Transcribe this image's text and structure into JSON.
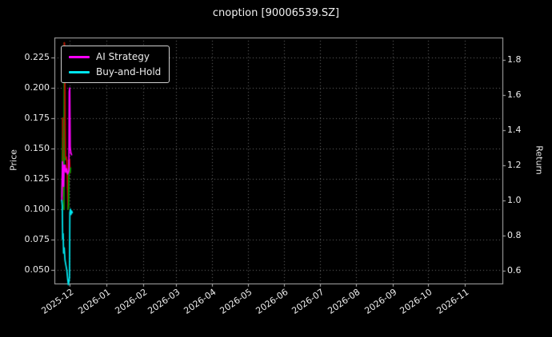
{
  "chart_data": {
    "type": "line",
    "title": "cnoption [90006539.SZ]",
    "grid": true,
    "background": "#000000",
    "left_axis": {
      "label": "Price",
      "ticks": [
        "0.050",
        "0.075",
        "0.100",
        "0.125",
        "0.150",
        "0.175",
        "0.200",
        "0.225"
      ],
      "tick_values": [
        0.05,
        0.075,
        0.1,
        0.125,
        0.15,
        0.175,
        0.2,
        0.225
      ],
      "range": [
        0.0388,
        0.2414
      ]
    },
    "right_axis": {
      "label": "Return",
      "ticks": [
        "0.6",
        "0.8",
        "1.0",
        "1.2",
        "1.4",
        "1.6",
        "1.8"
      ],
      "tick_values": [
        0.6,
        0.8,
        1.0,
        1.2,
        1.4,
        1.6,
        1.8
      ],
      "range": [
        0.527,
        1.927
      ]
    },
    "x_axis": {
      "tick_labels": [
        "2025-12",
        "2026-01",
        "2026-02",
        "2026-03",
        "2026-04",
        "2026-05",
        "2026-06",
        "2026-07",
        "2026-08",
        "2026-09",
        "2026-10",
        "2026-11"
      ],
      "tick_days": [
        13,
        44,
        75,
        103,
        134,
        164,
        195,
        225,
        256,
        287,
        317,
        348
      ],
      "range_days": [
        0,
        380
      ]
    },
    "legend": [
      {
        "label": "AI Strategy",
        "color": "#ff00ff"
      },
      {
        "label": "Buy-and-Hold",
        "color": "#00e5ee"
      }
    ],
    "series": [
      {
        "name": "Price",
        "axis": "left",
        "style": "updown",
        "up_color": "#00a000",
        "down_color": "#cc0000",
        "points": [
          [
            6.3,
            0.11
          ],
          [
            6.6,
            0.126
          ],
          [
            6.9,
            0.158
          ],
          [
            7.1,
            0.175
          ],
          [
            7.4,
            0.15
          ],
          [
            7.7,
            0.118
          ],
          [
            8.0,
            0.1
          ],
          [
            8.4,
            0.237
          ],
          [
            8.8,
            0.23
          ],
          [
            9.1,
            0.17
          ],
          [
            9.4,
            0.141
          ],
          [
            10.0,
            0.143
          ],
          [
            10.6,
            0.14
          ],
          [
            11.2,
            0.118
          ],
          [
            11.6,
            0.1
          ],
          [
            12.0,
            0.103
          ],
          [
            12.4,
            0.14
          ],
          [
            12.9,
            0.141
          ],
          [
            13.3,
            0.13
          ],
          [
            13.7,
            0.134
          ]
        ]
      },
      {
        "name": "AI Strategy",
        "axis": "right",
        "style": "line",
        "color": "#ff00ff",
        "points": [
          [
            6.3,
            1.0
          ],
          [
            6.6,
            1.12
          ],
          [
            6.9,
            1.22
          ],
          [
            7.2,
            1.1
          ],
          [
            7.5,
            1.18
          ],
          [
            7.8,
            1.08
          ],
          [
            8.2,
            1.2
          ],
          [
            8.6,
            1.17
          ],
          [
            9.1,
            1.2
          ],
          [
            9.6,
            1.16
          ],
          [
            10.4,
            1.18
          ],
          [
            11.2,
            1.15
          ],
          [
            11.8,
            1.16
          ],
          [
            12.3,
            1.17
          ],
          [
            12.6,
            1.62
          ],
          [
            13.0,
            1.64
          ],
          [
            13.4,
            1.3
          ],
          [
            14.0,
            1.27
          ],
          [
            14.6,
            1.26
          ]
        ]
      },
      {
        "name": "Buy-and-Hold",
        "axis": "right",
        "style": "line",
        "color": "#00e5ee",
        "points": [
          [
            6.3,
            1.0
          ],
          [
            6.7,
            0.97
          ],
          [
            7.0,
            0.78
          ],
          [
            7.4,
            0.81
          ],
          [
            7.8,
            0.7
          ],
          [
            8.3,
            0.73
          ],
          [
            9.0,
            0.66
          ],
          [
            9.8,
            0.63
          ],
          [
            10.6,
            0.6
          ],
          [
            11.3,
            0.55
          ],
          [
            11.9,
            0.52
          ],
          [
            12.4,
            0.54
          ],
          [
            12.8,
            0.56
          ],
          [
            13.1,
            0.93
          ],
          [
            13.6,
            0.95
          ],
          [
            14.1,
            0.92
          ],
          [
            14.6,
            0.94
          ],
          [
            15.2,
            0.93
          ]
        ]
      }
    ]
  }
}
